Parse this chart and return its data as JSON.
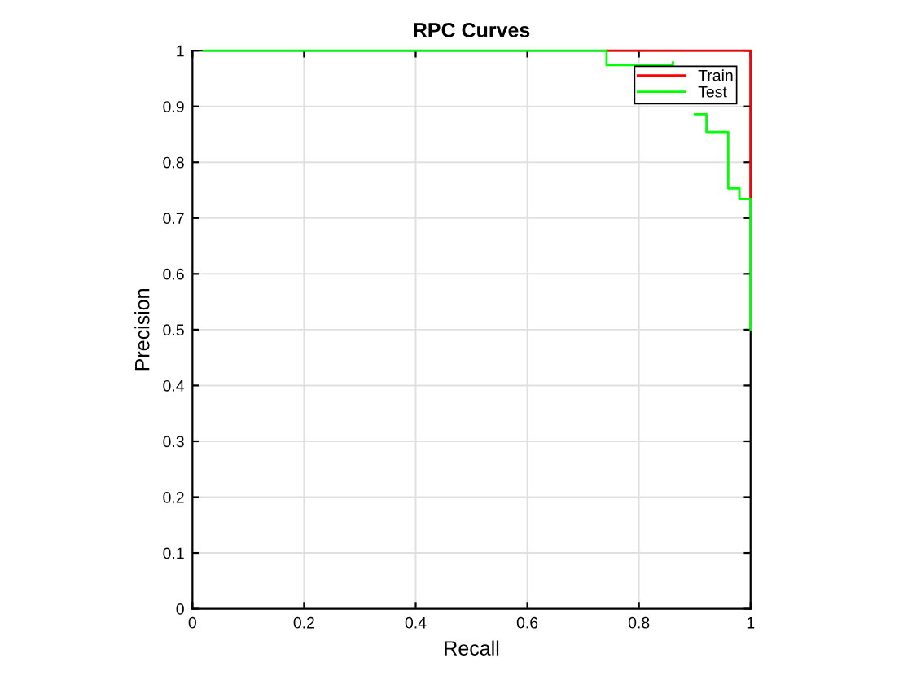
{
  "chart_data": {
    "type": "line",
    "title": "RPC Curves",
    "xlabel": "Recall",
    "ylabel": "Precision",
    "series": [
      {
        "name": "Train",
        "color": "#ff0000",
        "x": [
          0.742,
          1,
          1
        ],
        "values": [
          1,
          1,
          0.734
        ]
      },
      {
        "name": "Test",
        "color": "#00ff00",
        "x": [
          0.02,
          0.742,
          0.742,
          0.861,
          0.861,
          null,
          0.9,
          0.921,
          0.921,
          0.96,
          0.96,
          0.98,
          0.98,
          1,
          1
        ],
        "values": [
          1,
          1,
          0.974,
          0.974,
          0.979,
          null,
          0.886,
          0.886,
          0.854,
          0.854,
          0.753,
          0.753,
          0.734,
          0.734,
          0.5
        ]
      }
    ],
    "xlim": [
      0,
      1
    ],
    "ylim": [
      0,
      1
    ],
    "xticks": [
      0,
      0.2,
      0.4,
      0.6,
      0.8,
      1
    ],
    "yticks": [
      0,
      0.1,
      0.2,
      0.3,
      0.4,
      0.5,
      0.6,
      0.7,
      0.8,
      0.9,
      1
    ],
    "grid": true,
    "legend": "top right"
  }
}
